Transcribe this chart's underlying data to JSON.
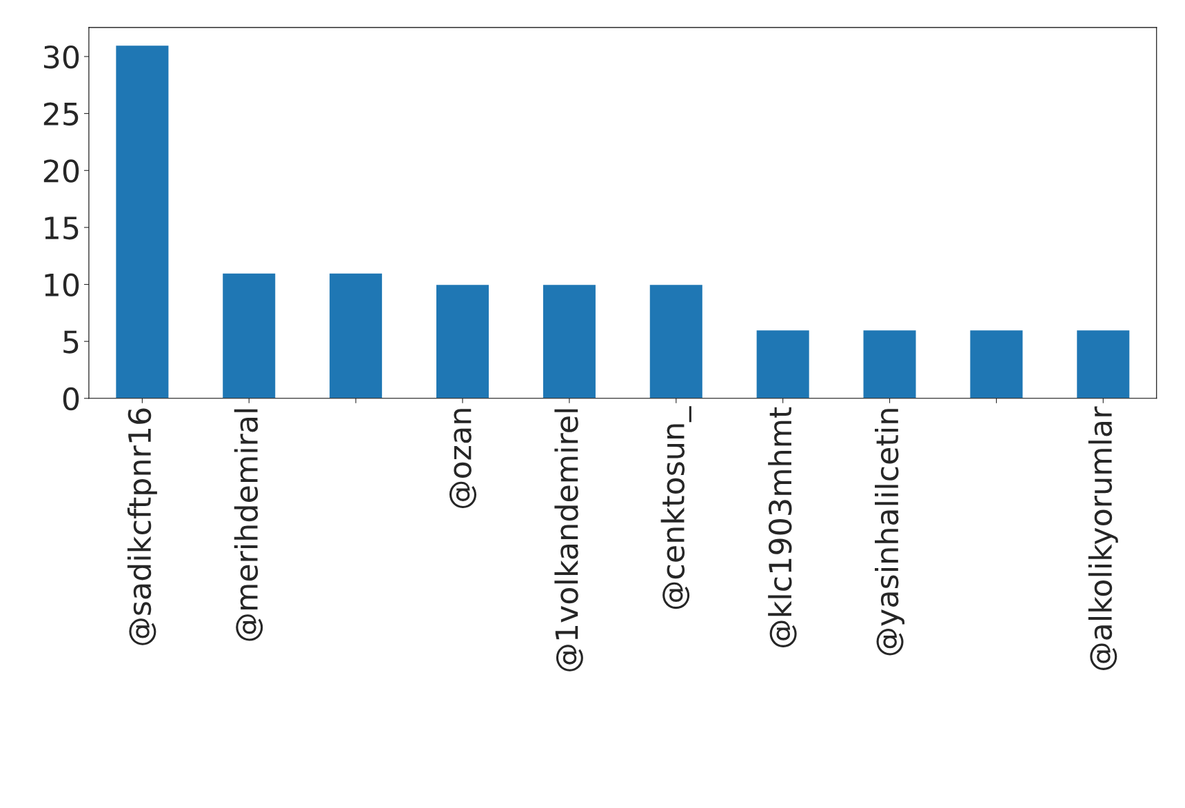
{
  "chart_data": {
    "type": "bar",
    "categories": [
      "@sadikcftpnr16",
      "@merihdemiral",
      null,
      "@ozan",
      "@1volkandemirel",
      "@cenktosun_",
      "@klc1903mhmt",
      "@yasinhalilcetin",
      null,
      "@alkolikyorumlar"
    ],
    "values": [
      31,
      11,
      11,
      10,
      10,
      10,
      6,
      6,
      6,
      6
    ],
    "color": "#1f77b4",
    "ylim": [
      0,
      32.55
    ],
    "yticks": [
      0,
      5,
      10,
      15,
      20,
      25,
      30
    ],
    "grid": false
  }
}
